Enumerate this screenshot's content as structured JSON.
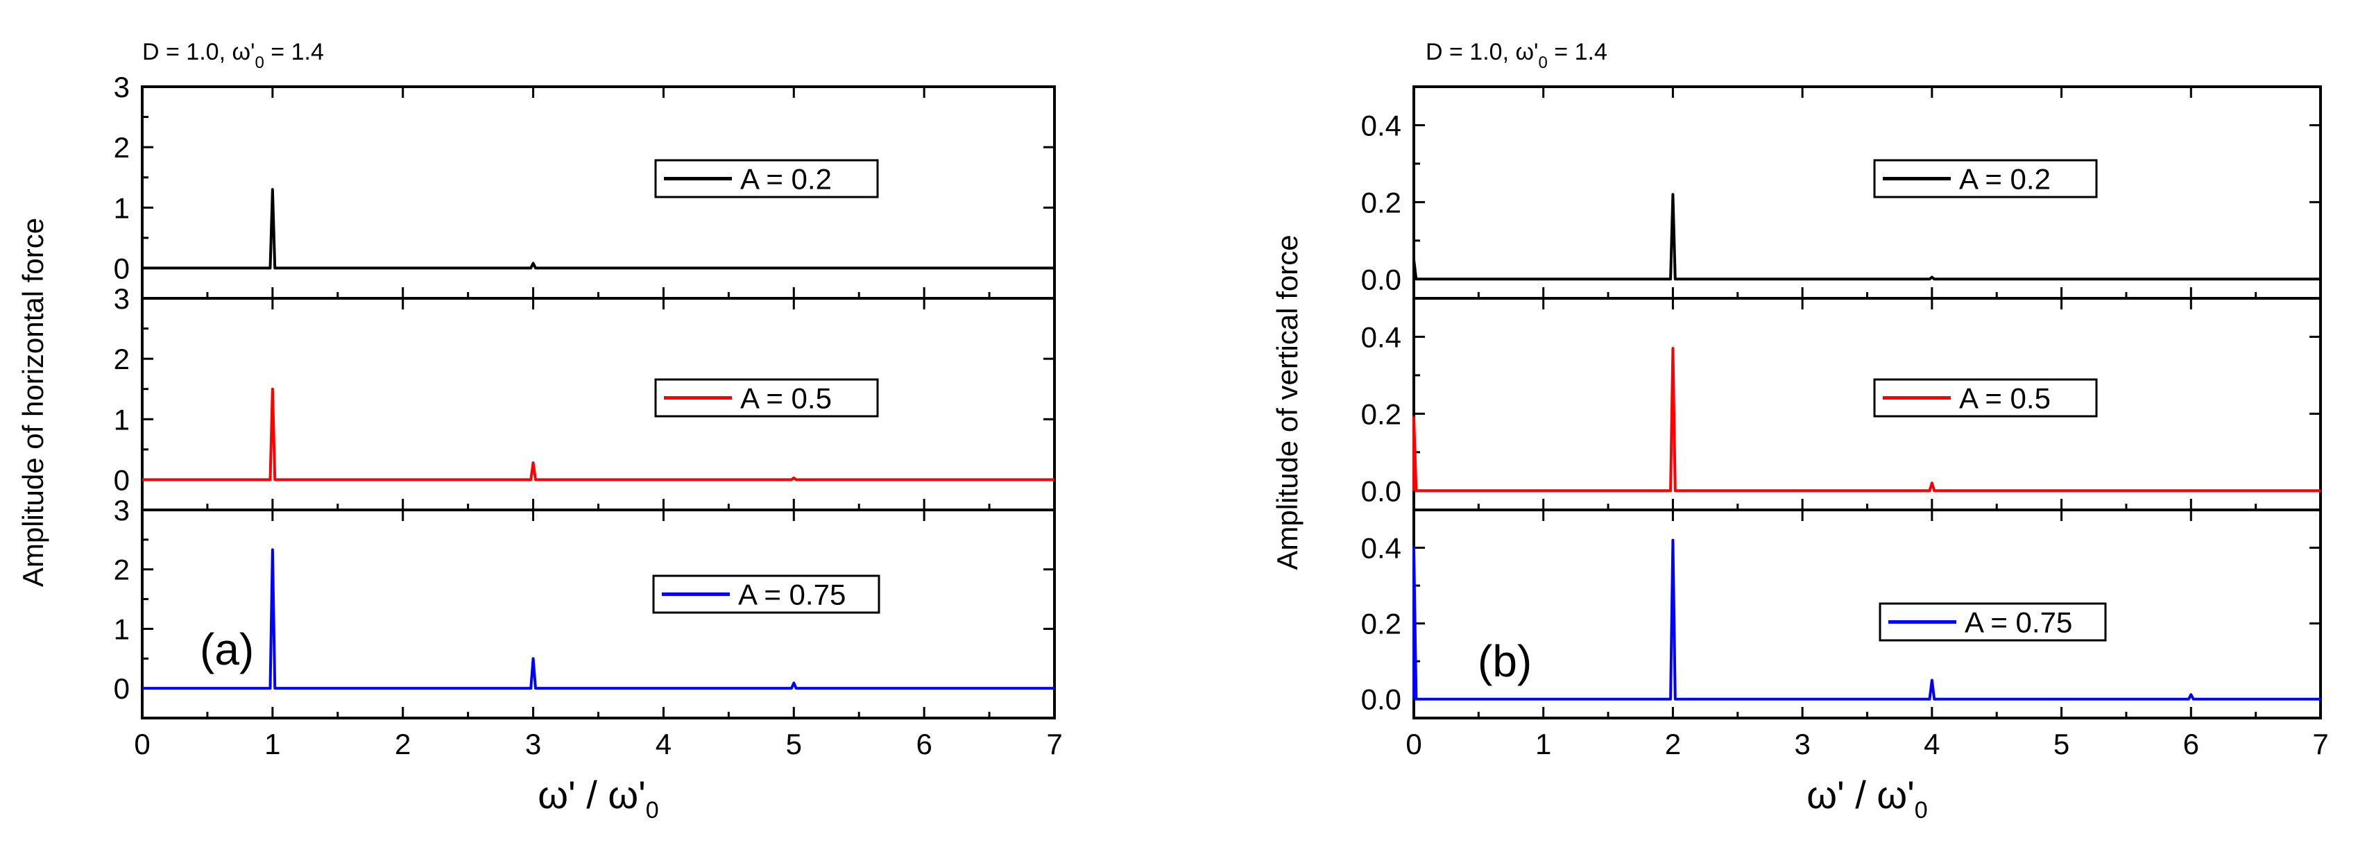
{
  "chart_data": [
    {
      "type": "line",
      "panel_label": "(a)",
      "header": {
        "prefix": "D = 1.0, ",
        "omega": "ω",
        "prime": "'",
        "sub": "0",
        "suffix": " = 1.4"
      },
      "ylabel": "Amplitude of horizontal force",
      "xlabel": {
        "num": "ω'",
        "slash": " / ",
        "den": "ω'",
        "sub": "0"
      },
      "xlim": [
        0,
        7
      ],
      "xticks": [
        "0",
        "1",
        "2",
        "3",
        "4",
        "5",
        "6",
        "7"
      ],
      "subplots": [
        {
          "legend": "A = 0.2",
          "color": "#000000",
          "ylim": [
            -0.5,
            3
          ],
          "yticks": [
            "0",
            "1",
            "2",
            "3"
          ],
          "baseline": 0,
          "peaks": [
            {
              "x": 1.0,
              "y": 1.3
            },
            {
              "x": 3.0,
              "y": 0.08
            }
          ]
        },
        {
          "legend": "A = 0.5",
          "color": "#ff0000",
          "ylim": [
            -0.5,
            3
          ],
          "yticks": [
            "0",
            "1",
            "2",
            "3"
          ],
          "baseline": 0,
          "peaks": [
            {
              "x": 1.0,
              "y": 1.5
            },
            {
              "x": 3.0,
              "y": 0.28
            },
            {
              "x": 5.0,
              "y": 0.03
            }
          ]
        },
        {
          "legend": "A = 0.75",
          "color": "#0000ff",
          "ylim": [
            -0.5,
            3
          ],
          "yticks": [
            "0",
            "1",
            "2",
            "3"
          ],
          "baseline": 0,
          "peaks": [
            {
              "x": 1.0,
              "y": 2.33
            },
            {
              "x": 3.0,
              "y": 0.5
            },
            {
              "x": 5.0,
              "y": 0.09
            }
          ]
        }
      ]
    },
    {
      "type": "line",
      "panel_label": "(b)",
      "header": {
        "prefix": "D = 1.0, ",
        "omega": "ω",
        "prime": "'",
        "sub": "0",
        "suffix": " = 1.4"
      },
      "ylabel": "Amplitude of vertical force",
      "xlabel": {
        "num": "ω'",
        "slash": " / ",
        "den": "ω'",
        "sub": "0"
      },
      "xlim": [
        0,
        7
      ],
      "xticks": [
        "0",
        "1",
        "2",
        "3",
        "4",
        "5",
        "6",
        "7"
      ],
      "subplots": [
        {
          "legend": "A = 0.2",
          "color": "#000000",
          "ylim": [
            -0.05,
            0.5
          ],
          "yticks": [
            "0.0",
            "0.2",
            "0.4"
          ],
          "baseline": 0,
          "peaks": [
            {
              "x": 0.0,
              "y": 0.05
            },
            {
              "x": 2.0,
              "y": 0.22
            },
            {
              "x": 4.0,
              "y": 0.005
            }
          ]
        },
        {
          "legend": "A = 0.5",
          "color": "#ff0000",
          "ylim": [
            -0.05,
            0.5
          ],
          "yticks": [
            "0.0",
            "0.2",
            "0.4"
          ],
          "baseline": 0,
          "peaks": [
            {
              "x": 0.0,
              "y": 0.19
            },
            {
              "x": 2.0,
              "y": 0.37
            },
            {
              "x": 4.0,
              "y": 0.02
            }
          ]
        },
        {
          "legend": "A = 0.75",
          "color": "#0000ff",
          "ylim": [
            -0.05,
            0.5
          ],
          "yticks": [
            "0.0",
            "0.2",
            "0.4"
          ],
          "baseline": 0,
          "peaks": [
            {
              "x": 0.0,
              "y": 0.4
            },
            {
              "x": 2.0,
              "y": 0.42
            },
            {
              "x": 4.0,
              "y": 0.05
            },
            {
              "x": 6.0,
              "y": 0.012
            }
          ]
        }
      ]
    }
  ]
}
